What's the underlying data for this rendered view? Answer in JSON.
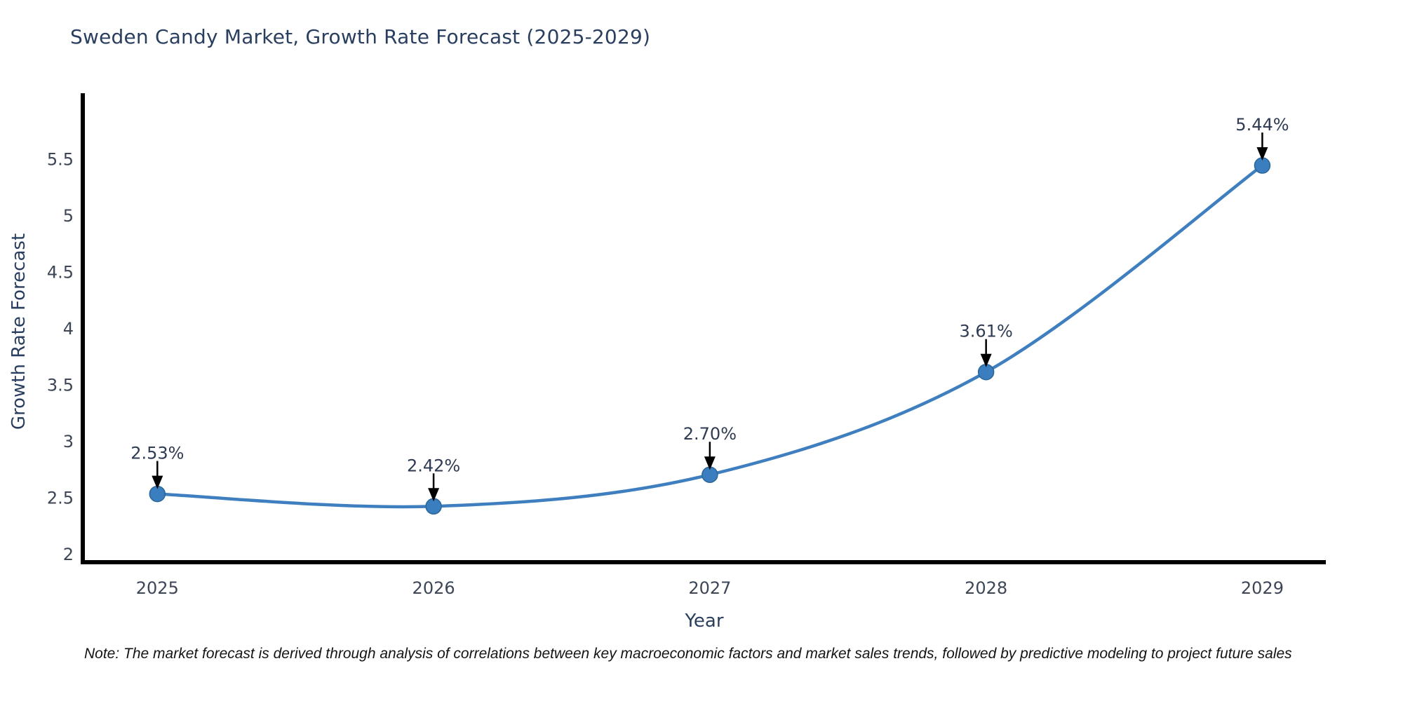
{
  "page": {
    "background": "#ffffff"
  },
  "title": "Sweden Candy Market, Growth Rate Forecast (2025-2029)",
  "note": "Note: The market forecast is derived through analysis of correlations between key macroeconomic factors and market sales trends, followed by predictive modeling to project future sales",
  "colors": {
    "title": "#2a3f5f",
    "axis_title": "#2a3f5f",
    "tick": "#3d4656",
    "annotation": "#2f3b52",
    "line": "#3f7fbf",
    "marker_fill": "#3a7ebf",
    "marker_edge": "#2c6699",
    "axis_line": "#000000",
    "arrow": "#000000",
    "note_text": "#141414"
  },
  "chart_data": {
    "type": "line",
    "title": "Sweden Candy Market, Growth Rate Forecast (2025-2029)",
    "xlabel": "Year",
    "ylabel": "Growth Rate Forecast",
    "x": [
      2025,
      2026,
      2027,
      2028,
      2029
    ],
    "values": [
      2.53,
      2.42,
      2.7,
      3.61,
      5.44
    ],
    "point_labels": [
      "2.53%",
      "2.42%",
      "2.70%",
      "3.61%",
      "5.44%"
    ],
    "x_tick_labels": [
      "2025",
      "2026",
      "2027",
      "2028",
      "2029"
    ],
    "y_ticks": [
      2,
      2.5,
      3,
      3.5,
      4,
      4.5,
      5,
      5.5
    ],
    "xlim": [
      2024.73,
      2029.23
    ],
    "ylim": [
      1.925,
      6.08
    ],
    "unit": "%",
    "line_shape": "spline",
    "grid": false,
    "legend": "none",
    "annotations": "value label with downward black arrow above each data point"
  }
}
